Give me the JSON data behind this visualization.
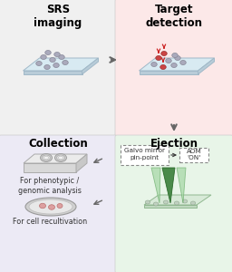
{
  "panel_colors": {
    "top_left": "#f0f0f0",
    "top_right": "#fce8e8",
    "bottom_left": "#eceaf5",
    "bottom_right": "#e8f5e8"
  },
  "panel_titles": {
    "top_left": "SRS\nimaging",
    "top_right": "Target\ndetection",
    "bottom_left": "Collection",
    "bottom_right": "Ejection"
  },
  "arrow_color": "#666666",
  "galvo_text": "Galvo mirror\npin-point",
  "aom_text": "AOM\n'ON'",
  "collection_text1": "For phenotypic /\ngenomic analysis",
  "collection_text2": "For cell recultivation",
  "slide_face": "#d8eaf2",
  "slide_edge": "#a0b8c8",
  "slide_side": "#b8ccd8",
  "cell_gray": "#aaaabc",
  "cell_gray_edge": "#888898",
  "cell_red": "#cc4444",
  "cell_red_edge": "#993333",
  "cone_dark": "#4a8a4a",
  "cone_light": "#a8d8a8",
  "cone_edge_dark": "#2a6a2a",
  "cone_edge_light": "#70b070",
  "ejection_slide_face": "#d8ead8",
  "ejection_slide_edge": "#90b890",
  "dashed_box_color": "#888888",
  "well_plate_top": "#e8e8e8",
  "well_plate_front": "#d0d0d0",
  "well_ring_outer": "#cccccc",
  "well_ring_inner": "#eeeeee",
  "petri_outer": "#cccccc",
  "petri_inner": "#e8e8e8",
  "petri_cell": "#dda0a0",
  "petri_cell_edge": "#bb7070"
}
